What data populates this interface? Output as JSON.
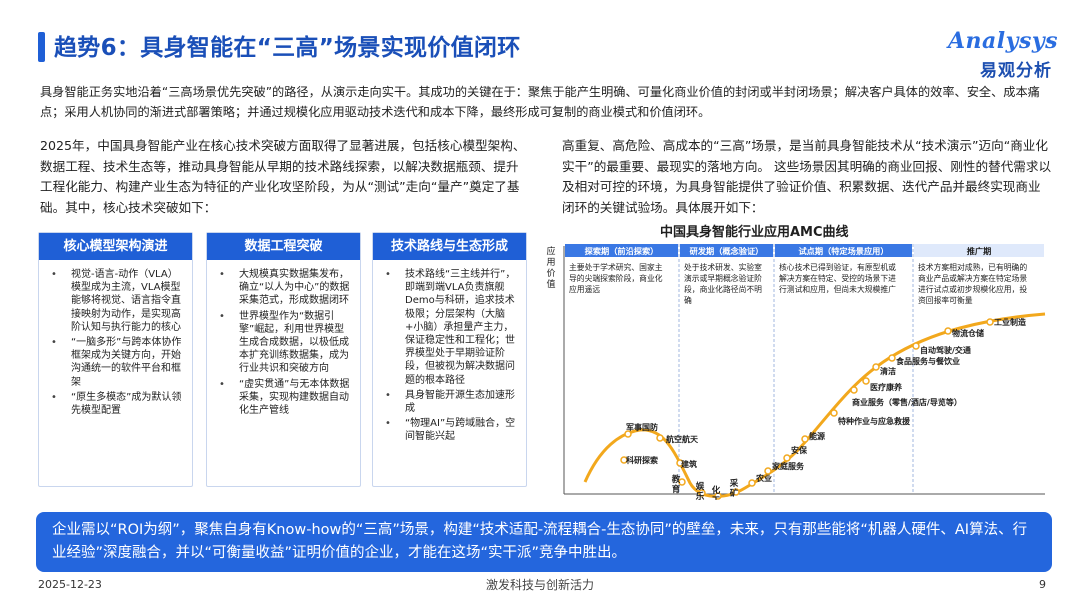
{
  "header": {
    "title": "趋势6：具身智能在“三高”场景实现价值闭环",
    "logo_en": "Analysys",
    "logo_cn": "易观分析"
  },
  "intro": "具身智能正务实地沿着“三高场景优先突破”的路径，从演示走向实干。其成功的关键在于：聚焦于能产生明确、可量化商业价值的封闭或半封闭场景；解决客户具体的效率、安全、成本痛点；采用人机协同的渐进式部署策略；并通过规模化应用驱动技术迭代和成本下降，最终形成可复制的商业模式和价值闭环。",
  "left_paragraph": "2025年，中国具身智能产业在核心技术突破方面取得了显著进展，包括核心模型架构、数据工程、技术生态等，推动具身智能从早期的技术路线探索，以解决数据瓶颈、提升工程化能力、构建产业生态为特征的产业化攻坚阶段，为从“测试”走向“量产”奠定了基础。其中，核心技术突破如下：",
  "right_paragraph": "高重复、高危险、高成本的“三高”场景，是当前具身智能技术从“技术演示”迈向“商业化实干”的最重要、最现实的落地方向。 这些场景因其明确的商业回报、刚性的替代需求以及相对可控的环境，为具身智能提供了验证价值、积累数据、迭代产品并最终实现商业闭环的关键试验场。具体展开如下：",
  "columns": [
    {
      "title": "核心模型架构演进",
      "items": [
        "视觉-语言-动作（VLA）模型成为主流，VLA模型能够将视觉、语言指令直接映射为动作，是实现高阶认知与执行能力的核心",
        "“一脑多形”与跨本体协作框架成为关键方向，开始沟通统一的软件平台和框架",
        "“原生多模态”成为默认领先模型配置"
      ]
    },
    {
      "title": "数据工程突破",
      "items": [
        "大规模真实数据集发布，确立“以人为中心”的数据采集范式，形成数据闭环",
        "世界模型作为“数据引擎”崛起，利用世界模型生成合成数据，以极低成本扩充训练数据集，成为行业共识和突破方向",
        "“虚实贯通”与无本体数据采集，实现构建数据自动化生产管线"
      ]
    },
    {
      "title": "技术路线与生态形成",
      "items": [
        "技术路线“三主线并行”，即端到端VLA负责旗舰Demo与科研，追求技术极限；分层架构（大脑+小脑）承担量产主力，保证稳定性和工程化；世界模型处于早期验证阶段，但被视为解决数据问题的根本路径",
        "具身智能开源生态加速形成",
        "“物理AI”与跨域融合，空间智能兴起"
      ]
    }
  ],
  "chart_data": {
    "type": "line",
    "title": "中国具身智能行业应用AMC曲线",
    "ylabel": "应用价值",
    "phases": [
      {
        "name": "探索期（前沿探索）",
        "desc": "主要处于学术研究、国家主导的尖端探索阶段，商业化应用遥远"
      },
      {
        "name": "研发期（概念验证）",
        "desc": "处于技术研发、实验室演示或早期概念验证阶段，商业化路径尚不明确"
      },
      {
        "name": "试点期（特定场景应用）",
        "desc": "核心技术已得到验证，有原型机或解决方案在特定、受控的场景下进行测试和应用，但尚未大规模推广"
      },
      {
        "name": "推广期",
        "desc": "技术方案相对成熟，已有明确的商业产品或解决方案在特定场景进行试点或初步规模化应用，投资回报率可衡量"
      }
    ],
    "labels": [
      "军事国防",
      "航空航天",
      "科研探索",
      "建筑",
      "教育",
      "娱乐",
      "化工",
      "采矿",
      "农业",
      "家庭服务",
      "安保",
      "能源",
      "特种作业与应急救援",
      "商业服务（零售/酒店/导览等）",
      "医疗康养",
      "清洁",
      "食品服务与餐饮业",
      "自动驾驶/交通",
      "物流仓储",
      "工业制造"
    ],
    "colors": {
      "curve": "#f2a81d",
      "phase_head": "#2f6fe0",
      "phase_desc": "#1f1f1f"
    }
  },
  "conclusion": "企业需以“ROI为纲”，聚焦自身有Know-how的“三高”场景，构建“技术适配-流程耦合-生态协同”的壁垒，未来，只有那些能将“机器人硬件、AI算法、行业经验”深度融合，并以“可衡量收益”证明价值的企业，才能在这场“实干派”竞争中胜出。",
  "footer": {
    "date": "2025-12-23",
    "slogan": "激发科技与创新活力",
    "page": "9"
  }
}
